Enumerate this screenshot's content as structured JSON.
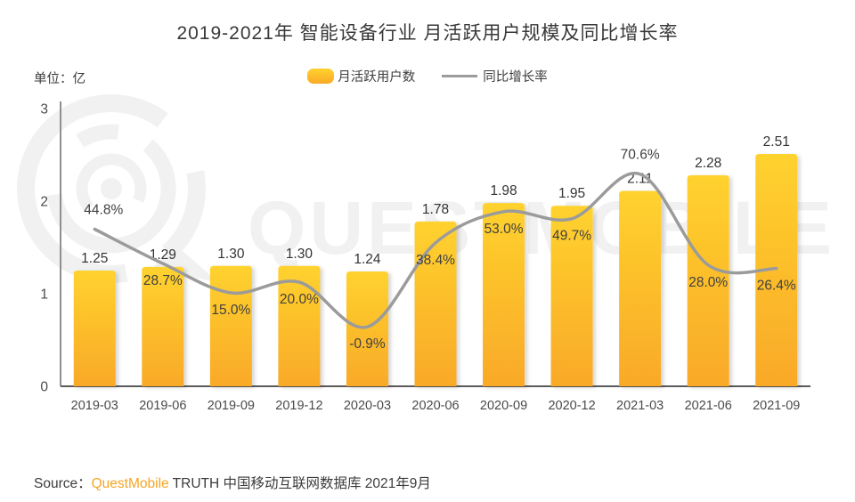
{
  "title": "2019-2021年 智能设备行业 月活跃用户规模及同比增长率",
  "unit_label": "单位：亿",
  "legend": {
    "bar_label": "月活跃用户数",
    "line_label": "同比增长率"
  },
  "watermark": "QUESTMOBILE",
  "source": {
    "prefix": "Source：",
    "brand": "QuestMobile",
    "suffix": " TRUTH 中国移动互联网数据库 2021年9月"
  },
  "colors": {
    "bar_top": "#FFD22E",
    "bar_bottom": "#F9A928",
    "line": "#9B9B9B",
    "brand": "#F5A623",
    "axis_x": "#5a5a5a",
    "axis_y": "#8f8f8f"
  },
  "chart_data": {
    "type": "bar",
    "title": "2019-2021年 智能设备行业 月活跃用户规模及同比增长率",
    "xlabel": "",
    "ylabel": "单位：亿",
    "categories": [
      "2019-03",
      "2019-06",
      "2019-09",
      "2019-12",
      "2020-03",
      "2020-06",
      "2020-09",
      "2020-12",
      "2021-03",
      "2021-06",
      "2021-09"
    ],
    "series": [
      {
        "name": "月活跃用户数",
        "type": "bar",
        "axis": "left",
        "values": [
          1.25,
          1.29,
          1.3,
          1.3,
          1.24,
          1.78,
          1.98,
          1.95,
          2.11,
          2.28,
          2.51
        ]
      },
      {
        "name": "同比增长率",
        "type": "line",
        "axis": "right",
        "unit": "%",
        "values": [
          44.8,
          28.7,
          15.0,
          20.0,
          -0.9,
          38.4,
          53.0,
          49.7,
          70.6,
          28.0,
          26.4
        ]
      }
    ],
    "ylim": [
      0,
      3
    ],
    "y_ticks": [
      0,
      1,
      2,
      3
    ],
    "y2lim": [
      -30,
      100
    ],
    "grid": false,
    "legend_position": "top-center"
  }
}
